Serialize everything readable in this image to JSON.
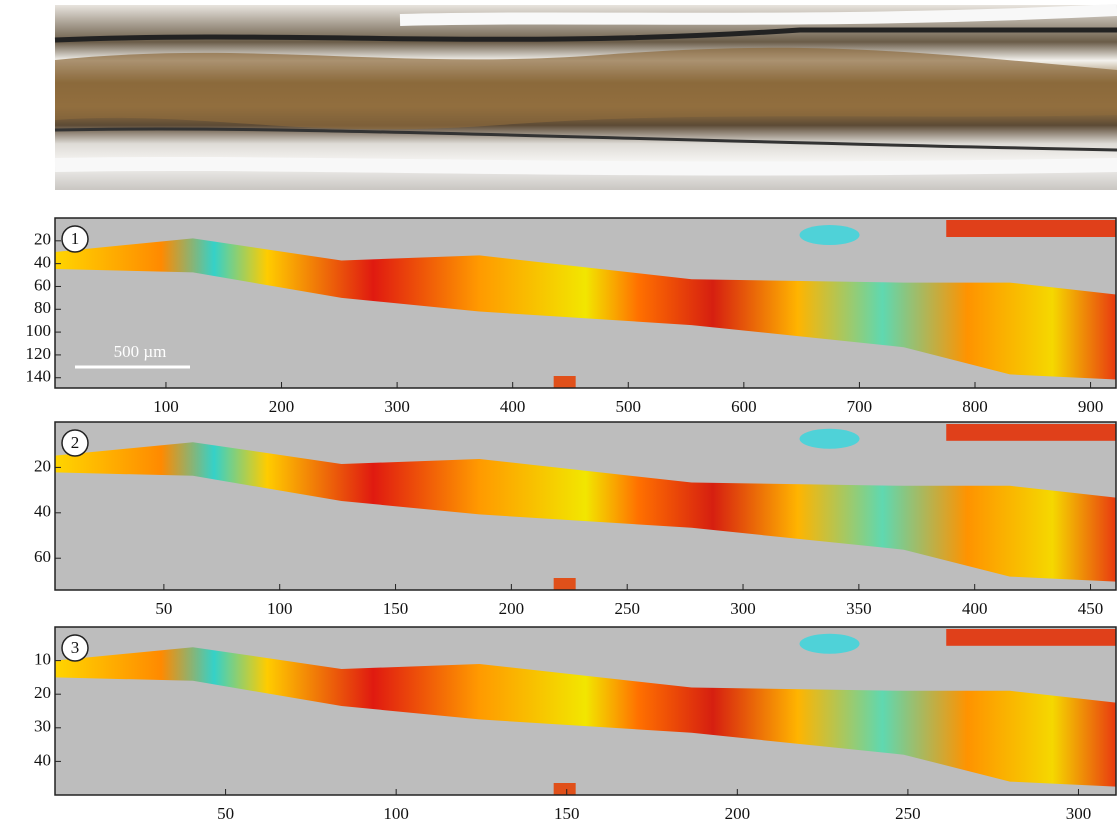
{
  "chart_data": [
    {
      "type": "heatmap",
      "label": "1",
      "scale_bar_label": "500 µm",
      "xlim": [
        4,
        922
      ],
      "ylim": [
        0,
        149
      ],
      "y_inverted": true,
      "xticks": [
        100,
        200,
        300,
        400,
        500,
        600,
        700,
        800,
        900
      ],
      "yticks": [
        20,
        40,
        60,
        80,
        100,
        120,
        140
      ]
    },
    {
      "type": "heatmap",
      "label": "2",
      "xlim": [
        3,
        461
      ],
      "ylim": [
        0,
        74
      ],
      "y_inverted": true,
      "xticks": [
        50,
        100,
        150,
        200,
        250,
        300,
        350,
        400,
        450
      ],
      "yticks": [
        20,
        40,
        60
      ]
    },
    {
      "type": "heatmap",
      "label": "3",
      "xlim": [
        0,
        311
      ],
      "ylim": [
        0,
        50
      ],
      "y_inverted": true,
      "xticks": [
        50,
        100,
        150,
        200,
        250,
        300
      ],
      "yticks": [
        10,
        20,
        30,
        40
      ]
    }
  ]
}
